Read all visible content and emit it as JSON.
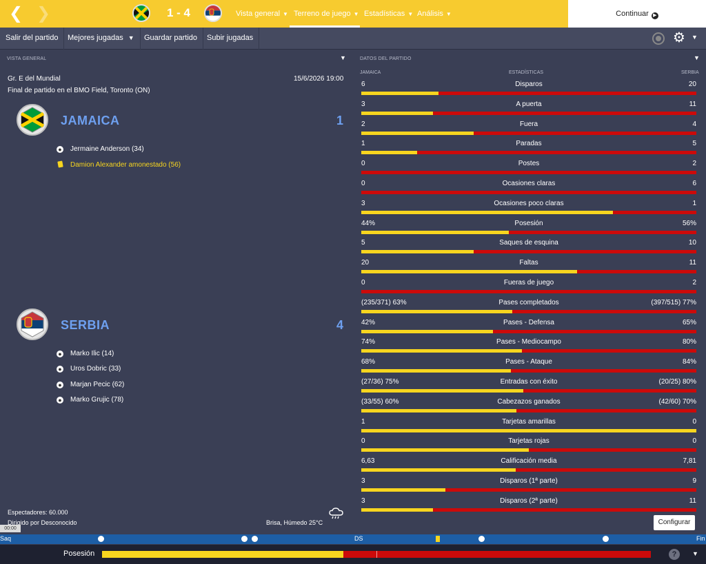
{
  "topbar": {
    "score": "1 - 4",
    "tabs": [
      "Vista general",
      "Terreno de juego",
      "Estadísticas",
      "Análisis"
    ],
    "continue_label": "Continuar"
  },
  "toolbar": {
    "items": [
      "Salir del partido",
      "Mejores jugadas",
      "Guardar partido",
      "Subir jugadas"
    ]
  },
  "overview": {
    "title": "VISTA GENERAL",
    "competition": "Gr. E del Mundial",
    "venue": "Final de partido en el BMO Field, Toronto (ON)",
    "datetime": "15/6/2026 19:00",
    "home": {
      "name": "JAMAICA",
      "score": "1",
      "events": [
        {
          "text": "Jermaine Anderson (34)",
          "type": "goal"
        },
        {
          "text": "Damion Alexander amonestado (56)",
          "type": "yellow"
        }
      ]
    },
    "away": {
      "name": "SERBIA",
      "score": "4",
      "events": [
        {
          "text": "Marko Ilic (14)",
          "type": "goal"
        },
        {
          "text": "Uros Dobric (33)",
          "type": "goal"
        },
        {
          "text": "Marjan Pecic (62)",
          "type": "goal"
        },
        {
          "text": "Marko Grujic (78)",
          "type": "goal"
        }
      ]
    },
    "attendance": "Espectadores: 60.000",
    "referee": "Dirigido por Desconocido",
    "weather": "Brisa, Húmedo 25°C"
  },
  "stats": {
    "title": "DATOS DEL PARTIDO",
    "col_home": "JAMAICA",
    "col_mid": "ESTADÍSTICAS",
    "col_away": "SERBIA",
    "rows": [
      {
        "label": "Disparos",
        "home": "6",
        "away": "20",
        "ratio": 0.23
      },
      {
        "label": "A puerta",
        "home": "3",
        "away": "11",
        "ratio": 0.215
      },
      {
        "label": "Fuera",
        "home": "2",
        "away": "4",
        "ratio": 0.335
      },
      {
        "label": "Paradas",
        "home": "1",
        "away": "5",
        "ratio": 0.167
      },
      {
        "label": "Postes",
        "home": "0",
        "away": "2",
        "ratio": 0
      },
      {
        "label": "Ocasiones claras",
        "home": "0",
        "away": "6",
        "ratio": 0
      },
      {
        "label": "Ocasiones poco claras",
        "home": "3",
        "away": "1",
        "ratio": 0.75
      },
      {
        "label": "Posesión",
        "home": "44%",
        "away": "56%",
        "ratio": 0.44
      },
      {
        "label": "Saques de esquina",
        "home": "5",
        "away": "10",
        "ratio": 0.335
      },
      {
        "label": "Faltas",
        "home": "20",
        "away": "11",
        "ratio": 0.645
      },
      {
        "label": "Fueras de juego",
        "home": "0",
        "away": "2",
        "ratio": 0
      },
      {
        "label": "Pases completados",
        "home": "(235/371) 63%",
        "away": "(397/515) 77%",
        "ratio": 0.45
      },
      {
        "label": "Pases - Defensa",
        "home": "42%",
        "away": "65%",
        "ratio": 0.393
      },
      {
        "label": "Pases - Mediocampo",
        "home": "74%",
        "away": "80%",
        "ratio": 0.48
      },
      {
        "label": "Pases - Ataque",
        "home": "68%",
        "away": "84%",
        "ratio": 0.447
      },
      {
        "label": "Entradas con éxito",
        "home": "(27/36) 75%",
        "away": "(20/25) 80%",
        "ratio": 0.484
      },
      {
        "label": "Cabezazos ganados",
        "home": "(33/55) 60%",
        "away": "(42/60) 70%",
        "ratio": 0.462
      },
      {
        "label": "Tarjetas amarillas",
        "home": "1",
        "away": "0",
        "ratio": 1
      },
      {
        "label": "Tarjetas rojas",
        "home": "0",
        "away": "0",
        "ratio": 0.5
      },
      {
        "label": "Calificación media",
        "home": "6,63",
        "away": "7,81",
        "ratio": 0.46
      },
      {
        "label": "Disparos (1ª parte)",
        "home": "3",
        "away": "9",
        "ratio": 0.25
      },
      {
        "label": "Disparos (2ª parte)",
        "home": "3",
        "away": "11",
        "ratio": 0.215
      }
    ],
    "configure_label": "Configurar"
  },
  "timeline": {
    "start": "Saq",
    "mid": "DS",
    "end": "Fin",
    "time": "00:00"
  },
  "possession": {
    "label": "Posesión",
    "home_share": 0.44
  },
  "colors": {
    "topbar": "#f7cb2f",
    "home_bar": "#f7d51f",
    "away_bar": "#cc0a0a",
    "team_name": "#6ea0f0",
    "background": "#3a3f55"
  }
}
